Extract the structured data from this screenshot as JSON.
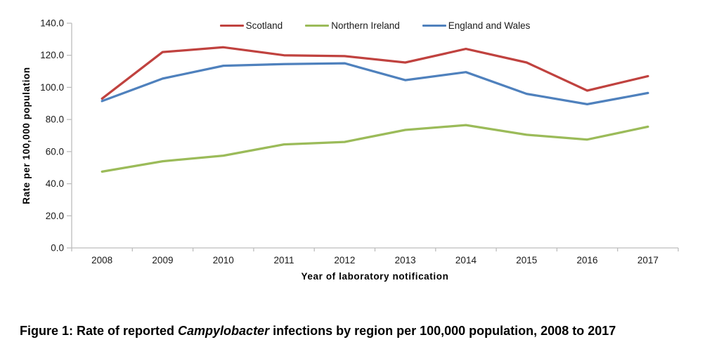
{
  "figure_caption": {
    "prefix": "Figure 1: Rate of reported ",
    "italic": "Campylobacter",
    "suffix": " infections by region per 100,000 population, 2008 to 2017"
  },
  "chart_data": {
    "type": "line",
    "title": "",
    "categories": [
      "2008",
      "2009",
      "2010",
      "2011",
      "2012",
      "2013",
      "2014",
      "2015",
      "2016",
      "2017"
    ],
    "series": [
      {
        "name": "Scotland",
        "color": "#c0423f",
        "values": [
          93.0,
          122.0,
          125.0,
          120.0,
          119.5,
          115.5,
          124.0,
          115.5,
          98.0,
          107.0
        ]
      },
      {
        "name": "Northern Ireland",
        "color": "#9bbb59",
        "values": [
          47.5,
          54.0,
          57.5,
          64.5,
          66.0,
          73.5,
          76.5,
          70.5,
          67.5,
          75.5
        ]
      },
      {
        "name": "England and Wales",
        "color": "#4f81bd",
        "values": [
          91.5,
          105.5,
          113.5,
          114.5,
          115.0,
          104.5,
          109.5,
          96.0,
          89.5,
          96.5
        ]
      }
    ],
    "xlabel": "Year of laboratory notification",
    "ylabel": "Rate per 100,000 population",
    "ylim": [
      0,
      140
    ],
    "ytick_step": 20,
    "ytick_format_decimals": 1,
    "legend_position": "top-center",
    "grid": false
  }
}
